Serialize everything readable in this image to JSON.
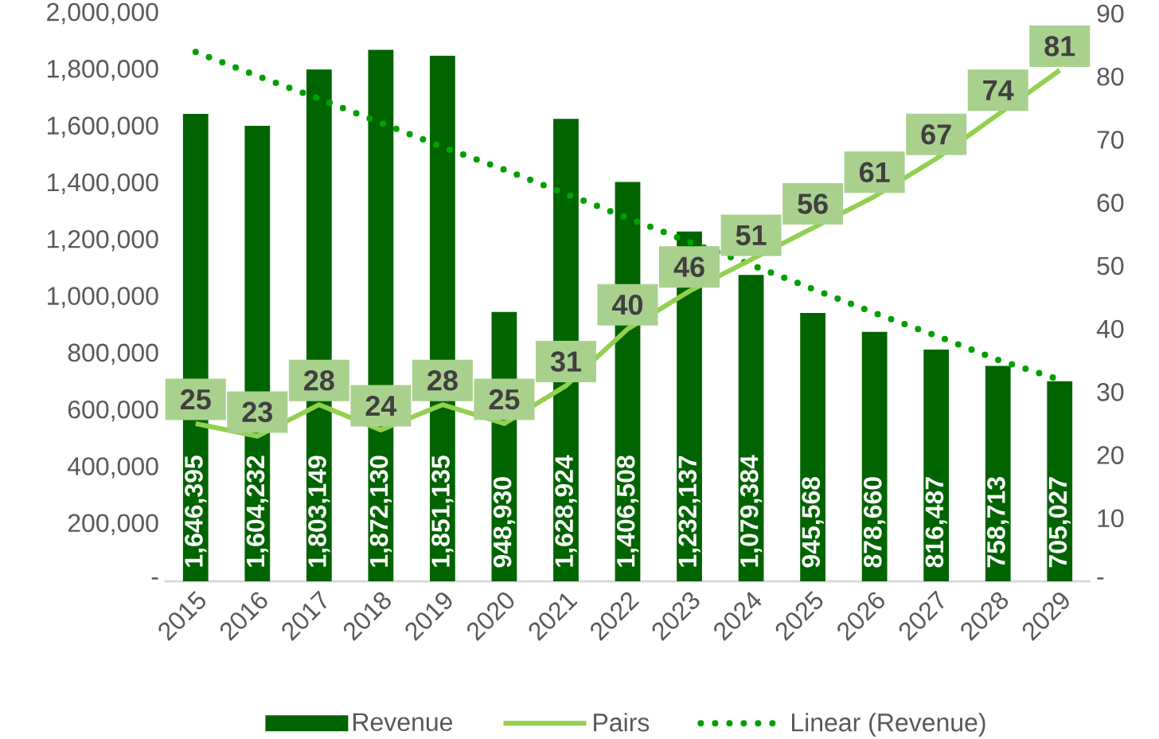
{
  "chart_data": {
    "type": "bar",
    "categories": [
      "2015",
      "2016",
      "2017",
      "2018",
      "2019",
      "2020",
      "2021",
      "2022",
      "2023",
      "2024",
      "2025",
      "2026",
      "2027",
      "2028",
      "2029"
    ],
    "series": [
      {
        "name": "Revenue",
        "color": "#006400",
        "values": [
          1646395,
          1604232,
          1803149,
          1872130,
          1851135,
          948930,
          1628924,
          1406508,
          1232137,
          1079384,
          945568,
          878660,
          816487,
          758713,
          705027
        ],
        "value_labels": [
          "1,646,395",
          "1,604,232",
          "1,803,149",
          "1,872,130",
          "1,851,135",
          "948,930",
          "1,628,924",
          "1,406,508",
          "1,232,137",
          "1,079,384",
          "945,568",
          "878,660",
          "816,487",
          "758,713",
          "705,027"
        ]
      },
      {
        "name": "Pairs",
        "type": "line",
        "axis": "y2",
        "color": "#92d050",
        "line_style": "solid",
        "values": [
          25,
          23,
          28,
          24,
          28,
          25,
          31,
          40,
          46,
          51,
          56,
          61,
          67,
          74,
          81
        ],
        "value_labels": [
          "25",
          "23",
          "28",
          "24",
          "28",
          "25",
          "31",
          "40",
          "46",
          "51",
          "56",
          "61",
          "67",
          "74",
          "81"
        ]
      },
      {
        "name": "Linear (Revenue)",
        "type": "line",
        "color": "#00a000",
        "line_style": "dotted",
        "values": [
          1865000,
          1780000,
          1700000,
          1615000,
          1530000,
          1450000,
          1365000,
          1280000,
          1195000,
          1115000,
          1030000,
          945000,
          865000,
          780000,
          710000
        ]
      }
    ],
    "ylim": [
      0,
      2000000
    ],
    "yticks": [
      {
        "value": 0,
        "label": "-"
      },
      {
        "value": 200000,
        "label": "200,000"
      },
      {
        "value": 400000,
        "label": "400,000"
      },
      {
        "value": 600000,
        "label": "600,000"
      },
      {
        "value": 800000,
        "label": "800,000"
      },
      {
        "value": 1000000,
        "label": "1,000,000"
      },
      {
        "value": 1200000,
        "label": "1,200,000"
      },
      {
        "value": 1400000,
        "label": "1,400,000"
      },
      {
        "value": 1600000,
        "label": "1,600,000"
      },
      {
        "value": 1800000,
        "label": "1,800,000"
      },
      {
        "value": 2000000,
        "label": "2,000,000"
      }
    ],
    "y2lim": [
      0,
      90
    ],
    "y2ticks": [
      {
        "value": 0,
        "label": "-"
      },
      10,
      20,
      30,
      40,
      50,
      60,
      70,
      80,
      90
    ],
    "legend": "bottom",
    "grid": false,
    "marker": "none"
  }
}
